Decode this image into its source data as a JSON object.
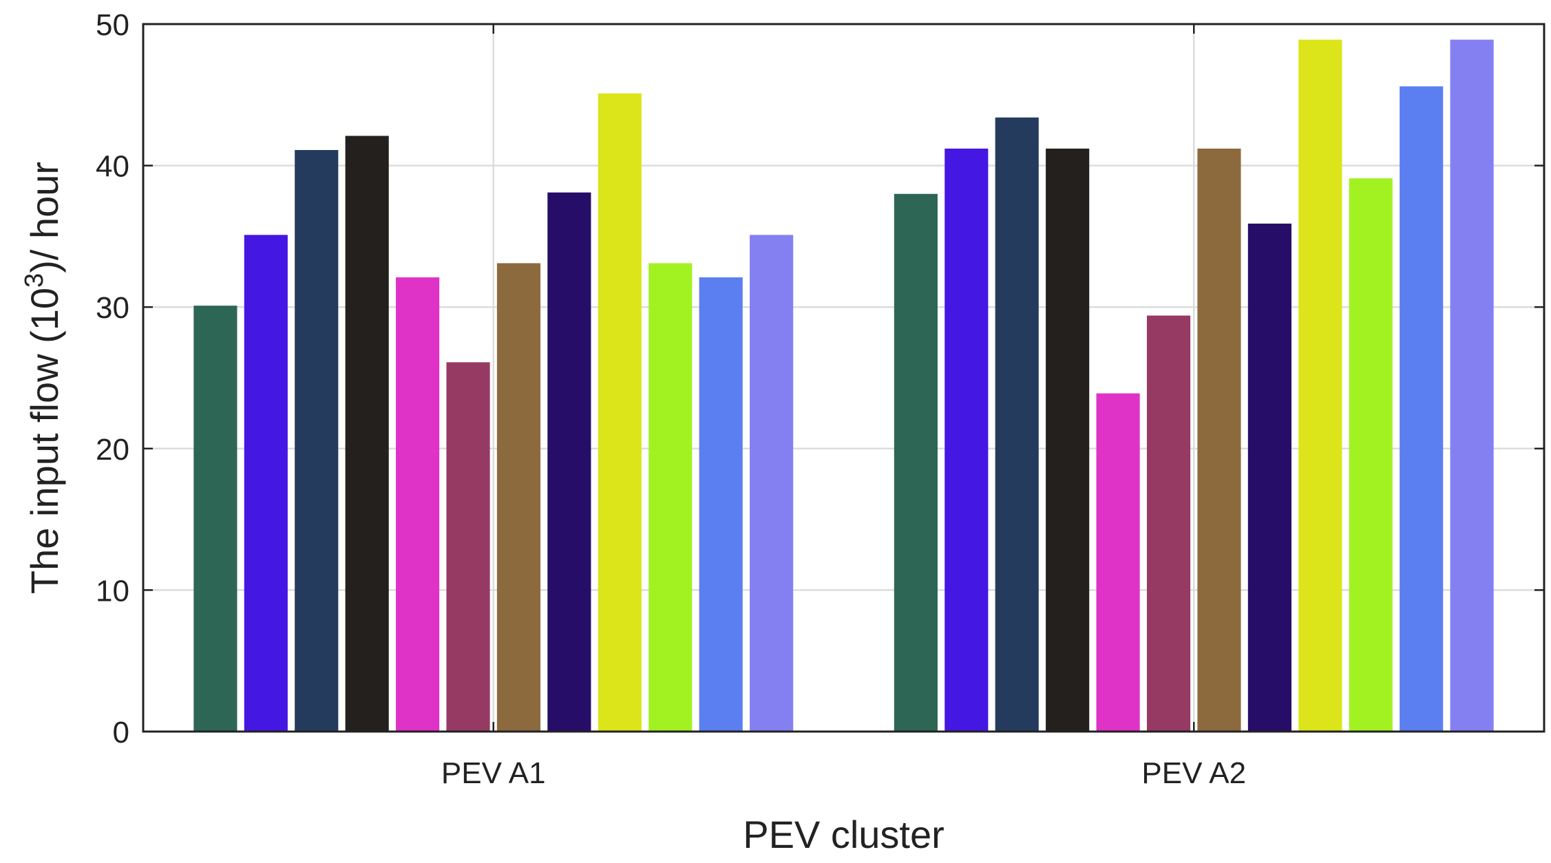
{
  "chart_data": {
    "type": "bar",
    "title": "",
    "xlabel": "PEV cluster",
    "ylabel": {
      "prefix": "The input flow (10",
      "superscript": "3",
      "suffix": ")/ hour"
    },
    "ylim": [
      0,
      50
    ],
    "yticks": [
      "0",
      "10",
      "20",
      "30",
      "40",
      "50"
    ],
    "grid": true,
    "categories": [
      "PEV A1",
      "PEV A2"
    ],
    "series": [
      {
        "color": "#2e6655",
        "values": [
          30.1,
          38.0
        ]
      },
      {
        "color": "#4417e3",
        "values": [
          35.1,
          41.2
        ]
      },
      {
        "color": "#253b5e",
        "values": [
          41.1,
          43.4
        ]
      },
      {
        "color": "#24201d",
        "values": [
          42.1,
          41.2
        ]
      },
      {
        "color": "#df33c8",
        "values": [
          32.1,
          23.9
        ]
      },
      {
        "color": "#963a64",
        "values": [
          26.1,
          29.4
        ]
      },
      {
        "color": "#8c6a3d",
        "values": [
          33.1,
          41.2
        ]
      },
      {
        "color": "#250d68",
        "values": [
          38.1,
          35.9
        ]
      },
      {
        "color": "#dbe51a",
        "values": [
          45.1,
          48.9
        ]
      },
      {
        "color": "#a2f222",
        "values": [
          33.1,
          39.1
        ]
      },
      {
        "color": "#5b7ff0",
        "values": [
          32.1,
          45.6
        ]
      },
      {
        "color": "#8480f2",
        "values": [
          35.1,
          48.9
        ]
      }
    ]
  }
}
